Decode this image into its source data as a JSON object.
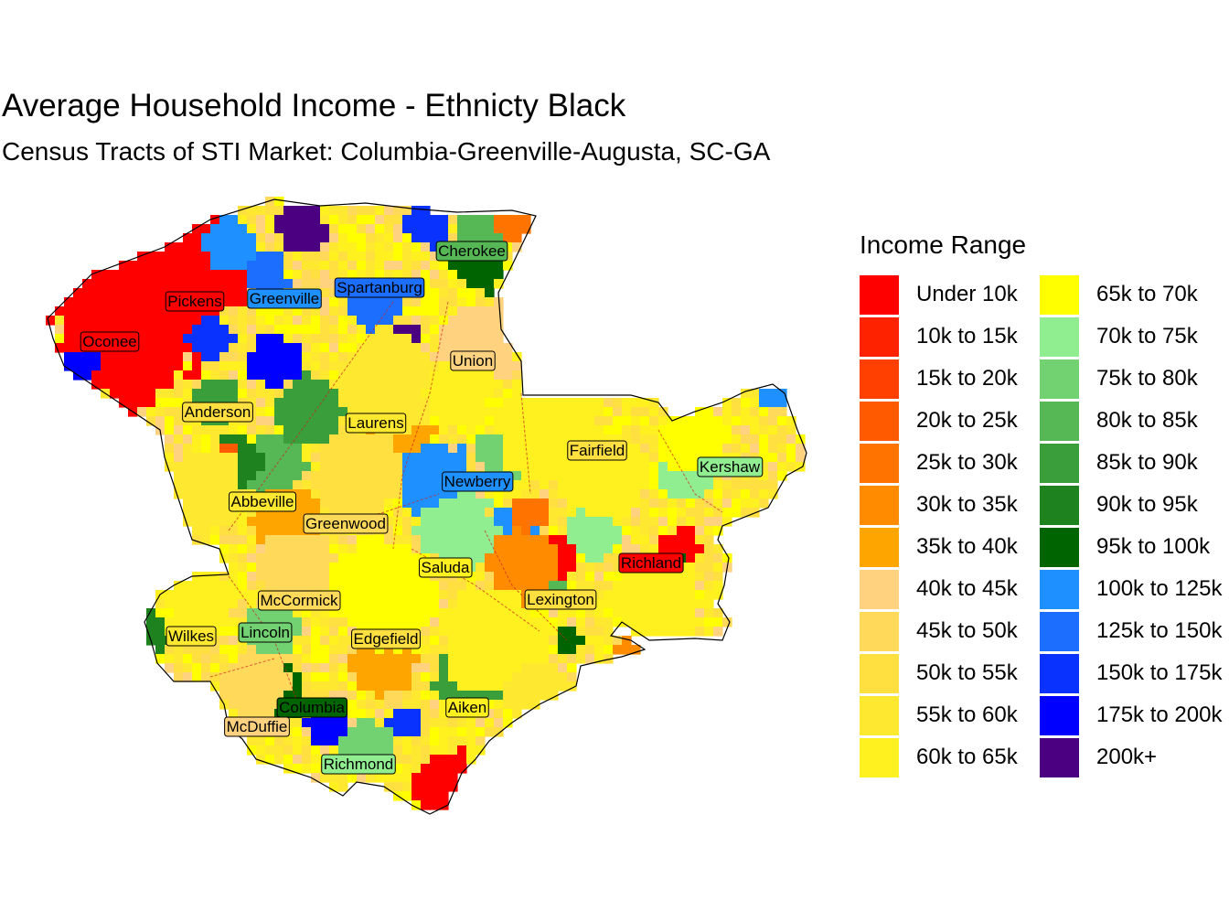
{
  "title": "Average Household Income - Ethnicty Black",
  "subtitle": "Census Tracts of STI Market: Columbia-Greenville-Augusta, SC-GA",
  "legend": {
    "title": "Income Range",
    "items": [
      {
        "label": "Under 10k",
        "color": "#FF0000"
      },
      {
        "label": "10k to 15k",
        "color": "#FF2200"
      },
      {
        "label": "15k to 20k",
        "color": "#FF4000"
      },
      {
        "label": "20k to 25k",
        "color": "#FF5A00"
      },
      {
        "label": "25k to 30k",
        "color": "#FF7400"
      },
      {
        "label": "30k to 35k",
        "color": "#FF8C00"
      },
      {
        "label": "35k to 40k",
        "color": "#FFA500"
      },
      {
        "label": "40k to 45k",
        "color": "#FFD280"
      },
      {
        "label": "45k to 50k",
        "color": "#FFD95A"
      },
      {
        "label": "50k to 55k",
        "color": "#FFE040"
      },
      {
        "label": "55k to 60k",
        "color": "#FFE830"
      },
      {
        "label": "60k to 65k",
        "color": "#FFF020"
      },
      {
        "label": "65k to 70k",
        "color": "#FFFF00"
      },
      {
        "label": "70k to 75k",
        "color": "#90EE90"
      },
      {
        "label": "75k to 80k",
        "color": "#72D272"
      },
      {
        "label": "80k to 85k",
        "color": "#55B855"
      },
      {
        "label": "85k to 90k",
        "color": "#3A9E3A"
      },
      {
        "label": "90k to 95k",
        "color": "#1E821E"
      },
      {
        "label": "95k to 100k",
        "color": "#006400"
      },
      {
        "label": "100k to 125k",
        "color": "#1E90FF"
      },
      {
        "label": "125k to 150k",
        "color": "#1C6EFF"
      },
      {
        "label": "150k to 175k",
        "color": "#0A32FF"
      },
      {
        "label": "175k to 200k",
        "color": "#0000FF"
      },
      {
        "label": "200k+",
        "color": "#4B0082"
      }
    ]
  },
  "counties": [
    {
      "name": "Cherokee",
      "bin": 15
    },
    {
      "name": "Pickens",
      "bin": 0
    },
    {
      "name": "Greenville",
      "bin": 19
    },
    {
      "name": "Spartanburg",
      "bin": 20
    },
    {
      "name": "Oconee",
      "bin": 0
    },
    {
      "name": "Union",
      "bin": 7
    },
    {
      "name": "Anderson",
      "bin": 9
    },
    {
      "name": "Laurens",
      "bin": 10
    },
    {
      "name": "Fairfield",
      "bin": 9
    },
    {
      "name": "Kershaw",
      "bin": 13
    },
    {
      "name": "Newberry",
      "bin": 19
    },
    {
      "name": "Abbeville",
      "bin": 10
    },
    {
      "name": "Greenwood",
      "bin": 8
    },
    {
      "name": "Saluda",
      "bin": 11
    },
    {
      "name": "Richland",
      "bin": 0
    },
    {
      "name": "McCormick",
      "bin": 8
    },
    {
      "name": "Lexington",
      "bin": 9
    },
    {
      "name": "Wilkes",
      "bin": 10
    },
    {
      "name": "Lincoln",
      "bin": 14
    },
    {
      "name": "Edgefield",
      "bin": 9
    },
    {
      "name": "Columbia",
      "bin": 18
    },
    {
      "name": "Aiken",
      "bin": 11
    },
    {
      "name": "McDuffie",
      "bin": 7
    },
    {
      "name": "Richmond",
      "bin": 13
    }
  ]
}
